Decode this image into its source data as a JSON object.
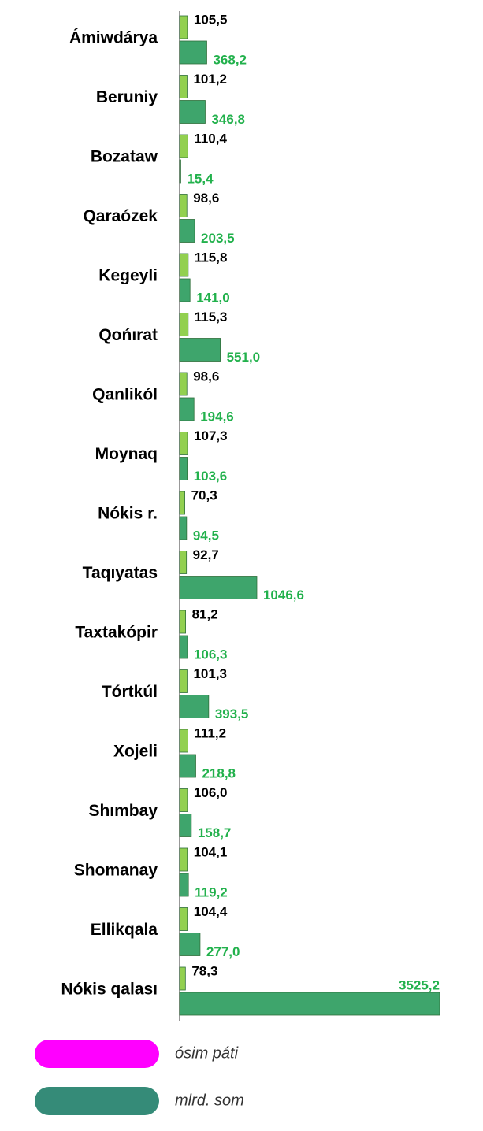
{
  "chart_data": {
    "type": "hbar",
    "categories": [
      "Ámiwdárya",
      "Beruniy",
      "Bozataw",
      "Qaraózek",
      "Kegeyli",
      "Qońırat",
      "Qanlikól",
      "Moynaq",
      "Nókis r.",
      "Taqıyatas",
      "Taxtakópir",
      "Tórtkúl",
      "Xojeli",
      "Shımbay",
      "Shomanay",
      "Ellikqala",
      "Nókis qalası"
    ],
    "series": [
      {
        "name": "ósim páti",
        "color": "#92d050",
        "legend_color": "#ff00ff",
        "label_color": "#000000",
        "values": [
          105.5,
          101.2,
          110.4,
          98.6,
          115.8,
          115.3,
          98.6,
          107.3,
          70.3,
          92.7,
          81.2,
          101.3,
          111.2,
          106.0,
          104.1,
          104.4,
          78.3
        ],
        "value_labels": [
          "105,5",
          "101,2",
          "110,4",
          "98,6",
          "115,8",
          "115,3",
          "98,6",
          "107,3",
          "70,3",
          "92,7",
          "81,2",
          "101,3",
          "111,2",
          "106,0",
          "104,1",
          "104,4",
          "78,3"
        ]
      },
      {
        "name": "mlrd. som",
        "color": "#3ea56c",
        "legend_color": "#358b78",
        "label_color": "#22b14c",
        "values": [
          368.2,
          346.8,
          15.4,
          203.5,
          141.0,
          551.0,
          194.6,
          103.6,
          94.5,
          1046.6,
          106.3,
          393.5,
          218.8,
          158.7,
          119.2,
          277.0,
          3525.2
        ],
        "value_labels": [
          "368,2",
          "346,8",
          "15,4",
          "203,5",
          "141,0",
          "551,0",
          "194,6",
          "103,6",
          "94,5",
          "1046,6",
          "106,3",
          "393,5",
          "218,8",
          "158,7",
          "119,2",
          "277,0",
          "3525,2"
        ]
      }
    ],
    "xlim": [
      0,
      3600
    ]
  }
}
